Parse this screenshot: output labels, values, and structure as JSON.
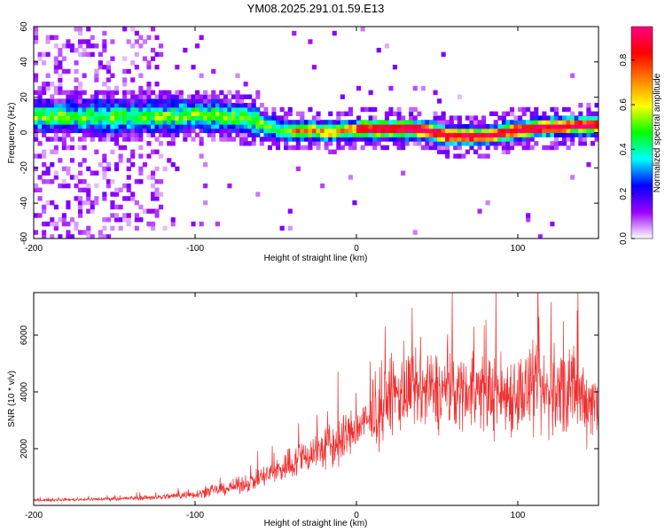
{
  "title": "YM08.2025.291.01.59.E13",
  "chart_data": [
    {
      "type": "heatmap",
      "title": "YM08.2025.291.01.59.E13",
      "xlabel": "Height of straight line (km)",
      "ylabel": "Frequency (Hz)",
      "xlim": [
        -200,
        150
      ],
      "ylim": [
        -60,
        60
      ],
      "xticks": [
        -200,
        -100,
        0,
        100
      ],
      "yticks": [
        60,
        40,
        20,
        0,
        -20,
        -40,
        -60
      ],
      "ridge": {
        "x": [
          -150,
          -120,
          -100,
          -80,
          -65,
          -55,
          -45,
          -35,
          -25,
          -15,
          -5,
          5,
          15,
          25,
          35,
          45,
          55,
          65,
          75,
          85,
          95,
          105,
          115,
          125,
          135,
          150
        ],
        "y": [
          8,
          8,
          9,
          8,
          6,
          2,
          0,
          0,
          0,
          -1,
          1,
          1,
          1,
          1,
          1,
          0,
          -3,
          -3,
          -3,
          -2,
          0,
          1,
          2,
          2,
          3,
          3
        ]
      },
      "colorbar": {
        "label": "Normalized spectral amplitude",
        "range": [
          0,
          0.95
        ],
        "ticks": [
          "0.0",
          "0.2",
          "0.4",
          "0.6",
          "0.8"
        ],
        "colors": [
          "#ffffff",
          "#9a00ff",
          "#0000ff",
          "#00ffff",
          "#00ff00",
          "#ffff00",
          "#ff7f00",
          "#ff0000",
          "#ff0080"
        ]
      }
    },
    {
      "type": "line",
      "xlabel": "Height of straight line (km)",
      "ylabel": "SNR (10 * v/v)",
      "xlim": [
        -200,
        150
      ],
      "ylim": [
        0,
        7500
      ],
      "xticks": [
        -200,
        -100,
        0,
        100
      ],
      "yticks": [
        2000,
        4000,
        6000
      ],
      "color": "#ee3030",
      "series": [
        {
          "name": "SNR",
          "x": [
            -200,
            -180,
            -160,
            -140,
            -120,
            -100,
            -90,
            -80,
            -70,
            -60,
            -50,
            -40,
            -30,
            -20,
            -15,
            -10,
            -5,
            0,
            5,
            10,
            15,
            20,
            30,
            40,
            50,
            60,
            70,
            80,
            90,
            100,
            110,
            120,
            130,
            140,
            150
          ],
          "mean": [
            180,
            200,
            220,
            250,
            300,
            400,
            500,
            600,
            750,
            950,
            1200,
            1500,
            1800,
            2000,
            2100,
            2200,
            2500,
            2700,
            2900,
            3000,
            3200,
            3800,
            4000,
            4000,
            4000,
            4050,
            4100,
            4000,
            3900,
            4000,
            4000,
            3900,
            4000,
            3800,
            3600
          ],
          "spread": [
            50,
            60,
            80,
            100,
            150,
            200,
            250,
            300,
            400,
            500,
            650,
            800,
            900,
            1100,
            1200,
            1400,
            1100,
            1000,
            1100,
            1100,
            1400,
            1900,
            1900,
            1900,
            1900,
            1800,
            1800,
            1900,
            2000,
            2000,
            2100,
            2200,
            2300,
            2000,
            1800
          ]
        }
      ]
    }
  ]
}
